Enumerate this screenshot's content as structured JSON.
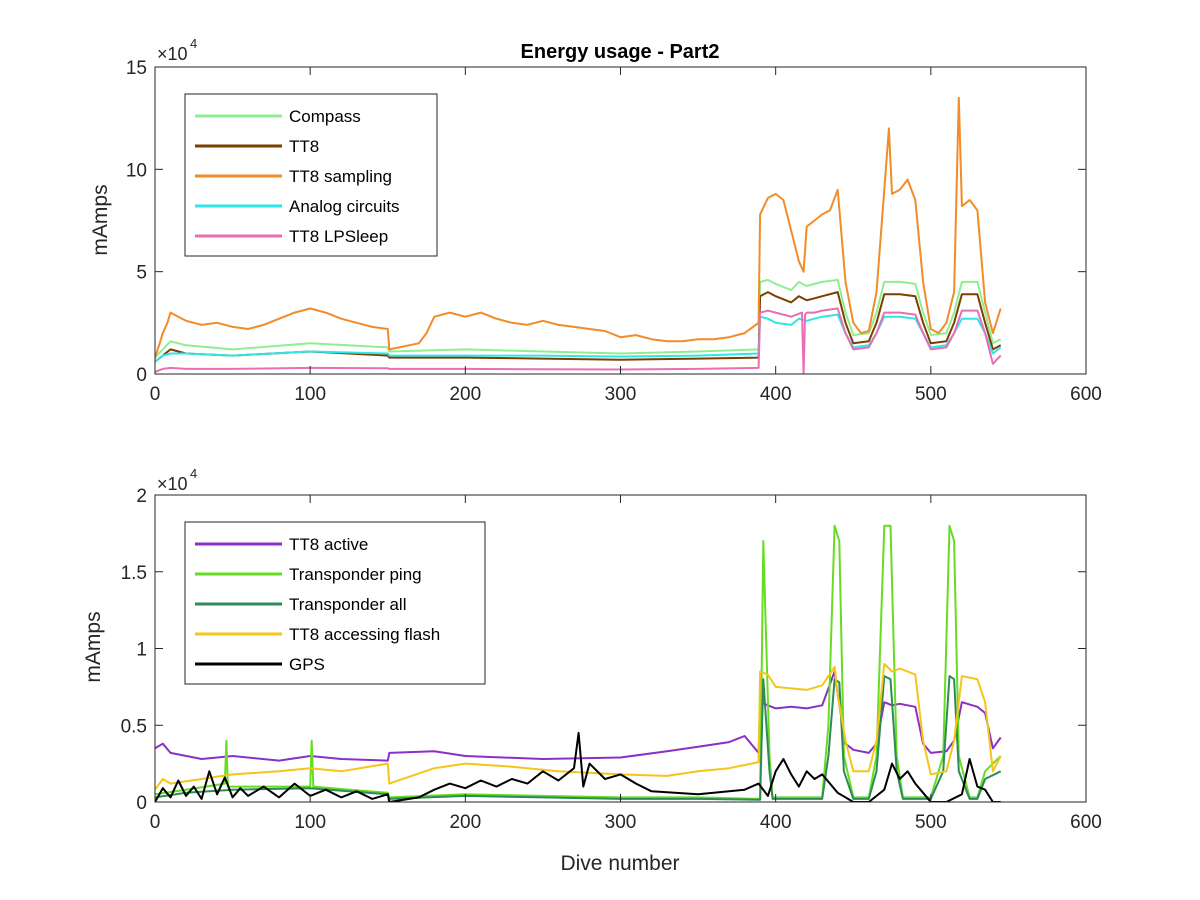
{
  "figure": {
    "title": "Energy usage - Part2",
    "xlabel": "Dive number"
  },
  "chart_data": [
    {
      "type": "line",
      "title": "Energy usage - Part2",
      "xlabel": "",
      "ylabel": "mAmps",
      "xlim": [
        0,
        600
      ],
      "ylim": [
        0,
        150000
      ],
      "xticks": [
        "0",
        "100",
        "200",
        "300",
        "400",
        "500",
        "600"
      ],
      "yticks": [
        "0",
        "5",
        "10",
        "15"
      ],
      "y_multiplier": "×10",
      "y_multiplier_exp": "4",
      "legend_position": "top-left",
      "grid": false,
      "series": [
        {
          "name": "Compass",
          "color": "#90ee90",
          "x": [
            0,
            5,
            10,
            20,
            50,
            100,
            150,
            151,
            200,
            250,
            300,
            350,
            389,
            390,
            395,
            400,
            410,
            415,
            420,
            425,
            430,
            440,
            445,
            450,
            460,
            465,
            470,
            480,
            490,
            495,
            500,
            510,
            515,
            520,
            530,
            535,
            540,
            545
          ],
          "y": [
            8000,
            12000,
            16000,
            14000,
            12000,
            15000,
            13000,
            11000,
            12000,
            11000,
            10000,
            11000,
            12000,
            45000,
            46000,
            44000,
            41000,
            45000,
            43000,
            44000,
            45000,
            46000,
            30000,
            19000,
            20000,
            30000,
            45000,
            45000,
            44000,
            30000,
            19000,
            20000,
            30000,
            45000,
            45000,
            30000,
            15000,
            17000
          ]
        },
        {
          "name": "TT8",
          "color": "#7b3f00",
          "x": [
            0,
            5,
            10,
            20,
            50,
            100,
            150,
            151,
            200,
            250,
            300,
            350,
            389,
            390,
            395,
            400,
            410,
            415,
            420,
            425,
            430,
            440,
            445,
            450,
            460,
            465,
            470,
            480,
            490,
            495,
            500,
            510,
            515,
            520,
            530,
            535,
            540,
            545
          ],
          "y": [
            6000,
            9000,
            12000,
            10000,
            9000,
            11000,
            9000,
            8000,
            8000,
            7500,
            7000,
            7500,
            8000,
            38000,
            40000,
            38000,
            35000,
            38000,
            36000,
            37000,
            38000,
            40000,
            25000,
            15000,
            16000,
            25000,
            39000,
            39000,
            38000,
            25000,
            15000,
            16000,
            25000,
            39000,
            39000,
            25000,
            12000,
            14000
          ]
        },
        {
          "name": "TT8 sampling",
          "color": "#f28c28",
          "x": [
            0,
            3,
            5,
            8,
            10,
            15,
            20,
            30,
            40,
            50,
            60,
            70,
            80,
            90,
            100,
            110,
            120,
            130,
            140,
            150,
            151,
            170,
            175,
            180,
            190,
            200,
            210,
            220,
            230,
            240,
            250,
            260,
            270,
            280,
            290,
            300,
            310,
            320,
            330,
            340,
            350,
            360,
            370,
            380,
            389,
            390,
            395,
            400,
            405,
            410,
            415,
            418,
            420,
            425,
            430,
            435,
            440,
            445,
            450,
            455,
            460,
            465,
            470,
            473,
            475,
            480,
            485,
            490,
            495,
            500,
            505,
            510,
            515,
            518,
            520,
            525,
            530,
            535,
            540,
            545
          ],
          "y": [
            8000,
            15000,
            20000,
            25000,
            30000,
            28000,
            26000,
            24000,
            25000,
            23000,
            22000,
            24000,
            27000,
            30000,
            32000,
            30000,
            27000,
            25000,
            23000,
            22000,
            12000,
            15000,
            20000,
            28000,
            30000,
            28000,
            30000,
            27000,
            25000,
            24000,
            26000,
            24000,
            23000,
            22000,
            21000,
            18000,
            19000,
            17000,
            16000,
            16000,
            17000,
            17000,
            18000,
            20000,
            25000,
            78000,
            86000,
            88000,
            85000,
            70000,
            55000,
            50000,
            72000,
            75000,
            78000,
            80000,
            90000,
            45000,
            25000,
            20000,
            21000,
            40000,
            90000,
            120000,
            88000,
            90000,
            95000,
            85000,
            45000,
            22000,
            20000,
            25000,
            40000,
            135000,
            82000,
            85000,
            80000,
            35000,
            20000,
            32000
          ]
        },
        {
          "name": "Analog circuits",
          "color": "#2ee6e6",
          "x": [
            0,
            5,
            10,
            20,
            50,
            100,
            150,
            151,
            200,
            250,
            300,
            350,
            389,
            390,
            395,
            400,
            410,
            415,
            420,
            425,
            430,
            440,
            445,
            450,
            460,
            465,
            470,
            480,
            490,
            495,
            500,
            510,
            515,
            520,
            530,
            535,
            540,
            545
          ],
          "y": [
            6000,
            9000,
            10000,
            10000,
            9000,
            11000,
            10000,
            9000,
            9000,
            9000,
            8500,
            9000,
            10000,
            28000,
            27000,
            25000,
            24000,
            27000,
            26000,
            27000,
            28000,
            29000,
            20000,
            13000,
            14000,
            20000,
            28000,
            28000,
            27000,
            20000,
            13000,
            14000,
            20000,
            27000,
            27000,
            20000,
            10000,
            13000
          ]
        },
        {
          "name": "TT8 LPSleep",
          "color": "#e86fb5",
          "x": [
            0,
            5,
            10,
            20,
            50,
            100,
            150,
            151,
            200,
            250,
            300,
            350,
            389,
            390,
            395,
            400,
            410,
            417,
            418,
            419,
            420,
            425,
            430,
            440,
            445,
            450,
            460,
            465,
            470,
            480,
            490,
            495,
            500,
            510,
            515,
            520,
            530,
            535,
            540,
            545
          ],
          "y": [
            1000,
            2500,
            3000,
            2500,
            2500,
            3000,
            2800,
            2500,
            2500,
            2300,
            2200,
            2500,
            3000,
            30000,
            31000,
            30000,
            28000,
            30000,
            0,
            29000,
            30000,
            30000,
            31000,
            32000,
            20000,
            12000,
            13000,
            20000,
            30000,
            30000,
            29000,
            20000,
            12000,
            13000,
            20000,
            31000,
            31000,
            20000,
            5000,
            9000
          ]
        }
      ]
    },
    {
      "type": "line",
      "title": "",
      "xlabel": "Dive number",
      "ylabel": "mAmps",
      "xlim": [
        0,
        600
      ],
      "ylim": [
        0,
        20000
      ],
      "xticks": [
        "0",
        "100",
        "200",
        "300",
        "400",
        "500",
        "600"
      ],
      "yticks": [
        "0",
        "0.5",
        "1",
        "1.5",
        "2"
      ],
      "y_multiplier": "×10",
      "y_multiplier_exp": "4",
      "legend_position": "top-left",
      "grid": false,
      "series": [
        {
          "name": "TT8 active",
          "color": "#8b2fc9",
          "x": [
            0,
            5,
            10,
            30,
            50,
            80,
            100,
            120,
            150,
            151,
            180,
            200,
            250,
            300,
            330,
            350,
            370,
            380,
            389,
            390,
            395,
            400,
            410,
            420,
            430,
            438,
            440,
            445,
            450,
            460,
            465,
            470,
            475,
            480,
            490,
            495,
            500,
            510,
            515,
            520,
            530,
            535,
            540,
            545
          ],
          "y": [
            3500,
            3800,
            3200,
            2800,
            3000,
            2700,
            3000,
            2800,
            2700,
            3200,
            3300,
            3000,
            2800,
            2900,
            3300,
            3600,
            3900,
            4300,
            3200,
            6500,
            6300,
            6100,
            6200,
            6100,
            6300,
            8500,
            7000,
            3800,
            3400,
            3200,
            3800,
            6500,
            6300,
            6400,
            6200,
            3800,
            3200,
            3300,
            4000,
            6500,
            6200,
            5800,
            3500,
            4200
          ]
        },
        {
          "name": "Transponder ping",
          "color": "#66dd22",
          "x": [
            0,
            20,
            45,
            46,
            47,
            100,
            101,
            102,
            150,
            151,
            200,
            250,
            300,
            350,
            389,
            390,
            392,
            396,
            398,
            400,
            430,
            434,
            438,
            441,
            444,
            450,
            460,
            465,
            470,
            474,
            478,
            482,
            490,
            500,
            508,
            512,
            515,
            518,
            525,
            530,
            535,
            545
          ],
          "y": [
            500,
            800,
            1200,
            4000,
            1000,
            1000,
            4000,
            1000,
            600,
            300,
            500,
            400,
            300,
            300,
            200,
            200,
            17000,
            3000,
            300,
            300,
            300,
            5000,
            18000,
            17000,
            3000,
            300,
            300,
            3000,
            18000,
            18000,
            3000,
            300,
            300,
            300,
            3000,
            18000,
            17000,
            3000,
            300,
            300,
            2000,
            3000
          ]
        },
        {
          "name": "Transponder all",
          "color": "#2e8b57",
          "x": [
            0,
            20,
            50,
            100,
            150,
            151,
            200,
            250,
            300,
            350,
            389,
            390,
            392,
            396,
            398,
            400,
            430,
            434,
            438,
            441,
            444,
            450,
            460,
            465,
            470,
            474,
            478,
            482,
            490,
            500,
            508,
            512,
            515,
            518,
            525,
            530,
            535,
            545
          ],
          "y": [
            300,
            600,
            800,
            900,
            500,
            200,
            400,
            300,
            200,
            200,
            150,
            150,
            8000,
            2000,
            200,
            200,
            200,
            3000,
            8000,
            7800,
            2000,
            200,
            200,
            2000,
            8200,
            8000,
            2000,
            200,
            200,
            200,
            2000,
            8200,
            8000,
            2000,
            200,
            200,
            1500,
            2000
          ]
        },
        {
          "name": "TT8 accessing flash",
          "color": "#f5c518",
          "x": [
            0,
            5,
            10,
            30,
            50,
            80,
            100,
            120,
            150,
            151,
            180,
            200,
            230,
            260,
            300,
            330,
            350,
            370,
            389,
            390,
            395,
            400,
            410,
            420,
            430,
            438,
            440,
            445,
            450,
            460,
            465,
            470,
            475,
            480,
            490,
            495,
            500,
            510,
            515,
            520,
            530,
            535,
            540,
            545
          ],
          "y": [
            800,
            1500,
            1200,
            1500,
            1800,
            2000,
            2200,
            2000,
            2500,
            1200,
            2200,
            2500,
            2300,
            2000,
            1800,
            1700,
            2000,
            2200,
            2600,
            8500,
            8300,
            7500,
            7400,
            7300,
            7600,
            8800,
            7000,
            4000,
            2000,
            2000,
            4000,
            9000,
            8500,
            8700,
            8300,
            4000,
            1800,
            2000,
            4000,
            8200,
            8000,
            6500,
            2000,
            3000
          ]
        },
        {
          "name": "GPS",
          "color": "#000000",
          "x": [
            0,
            5,
            10,
            15,
            20,
            25,
            30,
            35,
            40,
            45,
            50,
            55,
            60,
            70,
            80,
            90,
            100,
            110,
            120,
            130,
            140,
            150,
            151,
            170,
            180,
            190,
            200,
            210,
            220,
            230,
            240,
            250,
            260,
            270,
            273,
            276,
            280,
            290,
            300,
            310,
            320,
            350,
            380,
            389,
            395,
            400,
            405,
            410,
            415,
            420,
            425,
            430,
            435,
            440,
            445,
            450,
            460,
            470,
            475,
            480,
            485,
            490,
            495,
            500,
            510,
            520,
            525,
            530,
            535,
            540,
            545
          ],
          "y": [
            0,
            900,
            300,
            1400,
            400,
            1000,
            200,
            2000,
            500,
            1600,
            300,
            900,
            400,
            1000,
            300,
            1200,
            400,
            800,
            300,
            700,
            200,
            500,
            0,
            300,
            800,
            1200,
            900,
            1400,
            1000,
            1500,
            1200,
            2000,
            1400,
            2200,
            4500,
            1000,
            2500,
            1500,
            1800,
            1200,
            700,
            500,
            800,
            1200,
            400,
            2000,
            2800,
            1800,
            1000,
            2000,
            1500,
            1800,
            1200,
            600,
            300,
            0,
            0,
            800,
            2500,
            1500,
            2000,
            1200,
            600,
            0,
            0,
            500,
            2800,
            1000,
            800,
            0,
            0
          ]
        }
      ]
    }
  ]
}
